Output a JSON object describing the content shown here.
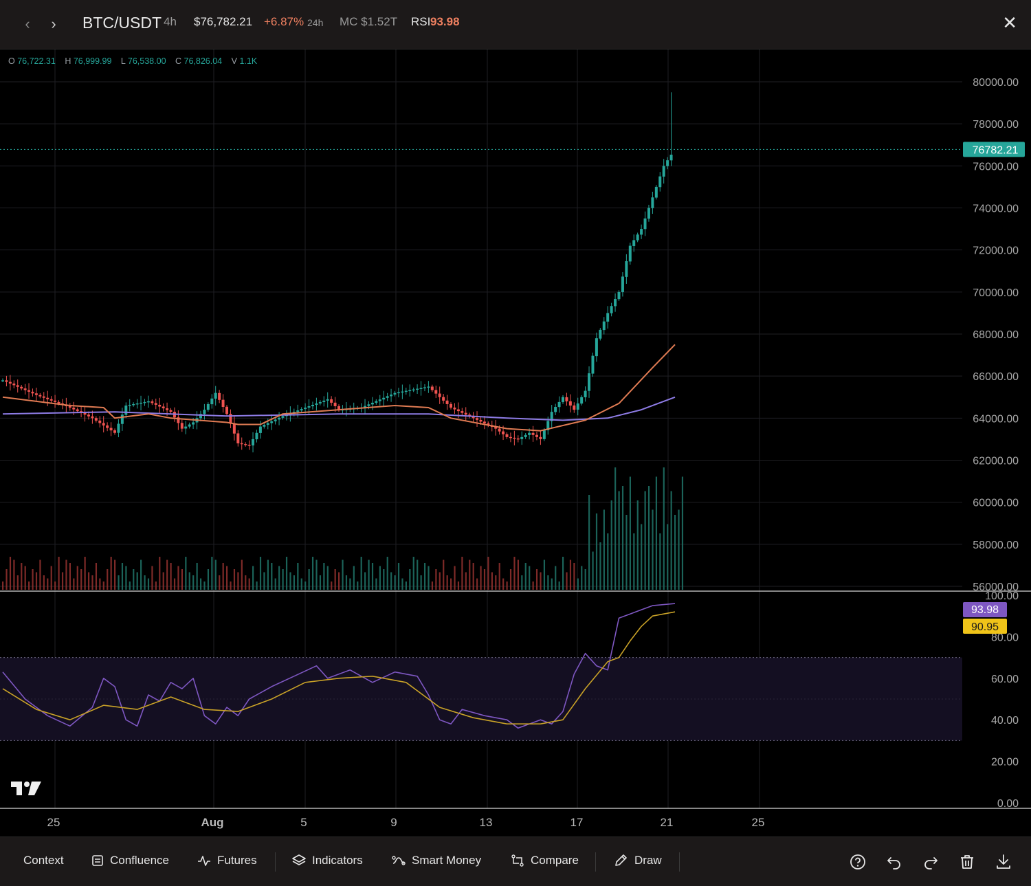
{
  "header": {
    "symbol": "BTC/USDT",
    "interval": "4h",
    "price": "$76,782.21",
    "change": "+6.87%",
    "change_period": "24h",
    "market_cap": "MC $1.52T",
    "rsi_label": "RSI",
    "rsi_value": "93.98"
  },
  "ohlc": {
    "o_label": "O",
    "o": "76,722.31",
    "h_label": "H",
    "h": "76,999.99",
    "l_label": "L",
    "l": "76,538.00",
    "c_label": "C",
    "c": "76,826.04",
    "v_label": "V",
    "v": "1.1K"
  },
  "colors": {
    "up": "#26a69a",
    "down": "#ef5350",
    "ma_fast": "#e07b53",
    "ma_slow": "#8e7ce6",
    "rsi": "#7e57c2",
    "rsi_ma": "#c9a227",
    "price_tag": "#26a69a",
    "header_bg": "#1c1919"
  },
  "chart_data": [
    {
      "type": "candlestick",
      "title": "BTC/USDT 4h",
      "x": [
        "25",
        "Aug",
        "5",
        "9",
        "13",
        "17",
        "21",
        "25"
      ],
      "ylim": [
        56000,
        80000
      ],
      "y_ticks": [
        "80000.00",
        "78000.00",
        "76000.00",
        "74000.00",
        "72000.00",
        "70000.00",
        "68000.00",
        "66000.00",
        "64000.00",
        "62000.00",
        "60000.00",
        "58000.00",
        "56000.00"
      ],
      "last_price_label": "76782.21",
      "last_price": 76782.21,
      "close_path": [
        [
          0,
          65800
        ],
        [
          3,
          65100
        ],
        [
          6,
          64500
        ],
        [
          8,
          64000
        ],
        [
          10,
          63300
        ],
        [
          11,
          64600
        ],
        [
          13,
          64800
        ],
        [
          15,
          64300
        ],
        [
          16,
          63500
        ],
        [
          17,
          63800
        ],
        [
          18,
          64400
        ],
        [
          19,
          65200
        ],
        [
          20,
          64200
        ],
        [
          21,
          62800
        ],
        [
          22,
          62700
        ],
        [
          23,
          63600
        ],
        [
          25,
          64100
        ],
        [
          27,
          64500
        ],
        [
          29,
          64900
        ],
        [
          30,
          64400
        ],
        [
          32,
          64500
        ],
        [
          35,
          65200
        ],
        [
          38,
          65500
        ],
        [
          40,
          64500
        ],
        [
          42,
          64000
        ],
        [
          44,
          63500
        ],
        [
          45,
          63100
        ],
        [
          46,
          63000
        ],
        [
          47,
          63300
        ],
        [
          48,
          63000
        ],
        [
          49,
          64300
        ],
        [
          50,
          65000
        ],
        [
          51,
          64400
        ],
        [
          52,
          65300
        ],
        [
          53,
          67800
        ],
        [
          54,
          69000
        ],
        [
          55,
          70000
        ],
        [
          56,
          72200
        ],
        [
          57,
          73000
        ],
        [
          58,
          74500
        ],
        [
          59,
          76000
        ],
        [
          60,
          76800
        ]
      ],
      "ma_fast": [
        [
          0,
          65000
        ],
        [
          6,
          64600
        ],
        [
          9,
          64500
        ],
        [
          10,
          64000
        ],
        [
          13,
          64200
        ],
        [
          15,
          64000
        ],
        [
          20,
          63800
        ],
        [
          21,
          63700
        ],
        [
          23,
          63700
        ],
        [
          25,
          64200
        ],
        [
          30,
          64400
        ],
        [
          35,
          64600
        ],
        [
          38,
          64500
        ],
        [
          40,
          64000
        ],
        [
          45,
          63500
        ],
        [
          48,
          63400
        ],
        [
          52,
          63900
        ],
        [
          55,
          64700
        ],
        [
          58,
          66400
        ],
        [
          60,
          67500
        ]
      ],
      "ma_slow": [
        [
          0,
          64200
        ],
        [
          10,
          64300
        ],
        [
          20,
          64100
        ],
        [
          30,
          64200
        ],
        [
          38,
          64200
        ],
        [
          45,
          64000
        ],
        [
          50,
          63900
        ],
        [
          54,
          64000
        ],
        [
          57,
          64400
        ],
        [
          60,
          65000
        ]
      ],
      "volume": {
        "max_label": "",
        "bars": 60
      }
    },
    {
      "type": "line",
      "title": "RSI",
      "ylim": [
        0,
        100
      ],
      "y_ticks": [
        "100.00",
        "80.00",
        "60.00",
        "40.00",
        "20.00",
        "0.00"
      ],
      "bands": [
        30,
        50,
        70
      ],
      "rsi_value_label": "93.98",
      "rsi_ma_value_label": "90.95",
      "series": [
        {
          "values": [
            [
              0,
              63
            ],
            [
              2,
              50
            ],
            [
              4,
              42
            ],
            [
              6,
              37
            ],
            [
              8,
              46
            ],
            [
              9,
              60
            ],
            [
              10,
              56
            ],
            [
              11,
              40
            ],
            [
              12,
              37
            ],
            [
              13,
              52
            ],
            [
              14,
              49
            ],
            [
              15,
              58
            ],
            [
              16,
              55
            ],
            [
              17,
              60
            ],
            [
              18,
              42
            ],
            [
              19,
              38
            ],
            [
              20,
              46
            ],
            [
              21,
              42
            ],
            [
              22,
              50
            ],
            [
              24,
              56
            ],
            [
              26,
              61
            ],
            [
              28,
              66
            ],
            [
              29,
              60
            ],
            [
              31,
              64
            ],
            [
              33,
              58
            ],
            [
              35,
              63
            ],
            [
              37,
              61
            ],
            [
              38,
              52
            ],
            [
              39,
              40
            ],
            [
              40,
              38
            ],
            [
              41,
              45
            ],
            [
              43,
              42
            ],
            [
              45,
              40
            ],
            [
              46,
              36
            ],
            [
              47,
              38
            ],
            [
              48,
              40
            ],
            [
              49,
              38
            ],
            [
              50,
              44
            ],
            [
              51,
              62
            ],
            [
              52,
              72
            ],
            [
              53,
              66
            ],
            [
              54,
              64
            ],
            [
              55,
              89
            ],
            [
              56,
              91
            ],
            [
              57,
              93
            ],
            [
              58,
              95
            ],
            [
              60,
              96
            ]
          ]
        },
        {
          "values": [
            [
              0,
              55
            ],
            [
              3,
              45
            ],
            [
              6,
              40
            ],
            [
              9,
              47
            ],
            [
              12,
              45
            ],
            [
              15,
              51
            ],
            [
              18,
              45
            ],
            [
              21,
              44
            ],
            [
              24,
              50
            ],
            [
              27,
              58
            ],
            [
              30,
              60
            ],
            [
              33,
              61
            ],
            [
              36,
              58
            ],
            [
              39,
              46
            ],
            [
              42,
              41
            ],
            [
              45,
              38
            ],
            [
              48,
              38
            ],
            [
              50,
              40
            ],
            [
              52,
              55
            ],
            [
              54,
              68
            ],
            [
              55,
              70
            ],
            [
              56,
              78
            ],
            [
              57,
              85
            ],
            [
              58,
              90
            ],
            [
              60,
              92
            ]
          ]
        }
      ]
    }
  ],
  "toolbar": {
    "context": "Context",
    "confluence": "Confluence",
    "futures": "Futures",
    "indicators": "Indicators",
    "smart_money": "Smart Money",
    "compare": "Compare",
    "draw": "Draw"
  }
}
